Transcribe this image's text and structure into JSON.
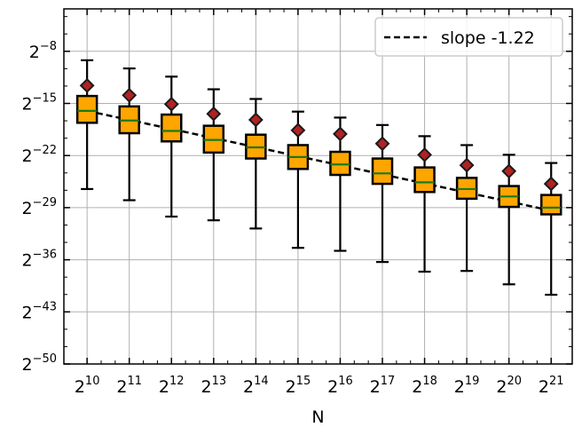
{
  "chart_data": {
    "type": "box",
    "title": "",
    "xlabel": "N",
    "ylabel": "",
    "x_scale": "log2",
    "y_scale": "log2",
    "x": [
      10,
      11,
      12,
      13,
      14,
      15,
      16,
      17,
      18,
      19,
      20,
      21
    ],
    "x_tick_labels": [
      {
        "base": "2",
        "exp": "10"
      },
      {
        "base": "2",
        "exp": "11"
      },
      {
        "base": "2",
        "exp": "12"
      },
      {
        "base": "2",
        "exp": "13"
      },
      {
        "base": "2",
        "exp": "14"
      },
      {
        "base": "2",
        "exp": "15"
      },
      {
        "base": "2",
        "exp": "16"
      },
      {
        "base": "2",
        "exp": "17"
      },
      {
        "base": "2",
        "exp": "18"
      },
      {
        "base": "2",
        "exp": "19"
      },
      {
        "base": "2",
        "exp": "20"
      },
      {
        "base": "2",
        "exp": "21"
      }
    ],
    "y_ticks": [
      -50,
      -43,
      -36,
      -29,
      -22,
      -15,
      -8
    ],
    "y_tick_labels": [
      {
        "base": "2",
        "exp": "−50"
      },
      {
        "base": "2",
        "exp": "−43"
      },
      {
        "base": "2",
        "exp": "−36"
      },
      {
        "base": "2",
        "exp": "−29"
      },
      {
        "base": "2",
        "exp": "−22"
      },
      {
        "base": "2",
        "exp": "−15"
      },
      {
        "base": "2",
        "exp": "−8"
      }
    ],
    "xlim": [
      9.45,
      21.5
    ],
    "ylim": [
      -50,
      -2.3
    ],
    "grid": true,
    "legend": {
      "position": "top-right",
      "entries": [
        {
          "label": "slope -1.22",
          "style": "dashed",
          "color": "#000000"
        }
      ]
    },
    "boxes": [
      {
        "x": 10,
        "whisker_low": -26.5,
        "q1": -17.6,
        "median": -16.0,
        "q3": -14.0,
        "whisker_high": -9.2,
        "max_marker": -12.6
      },
      {
        "x": 11,
        "whisker_low": -28.0,
        "q1": -19.0,
        "median": -17.3,
        "q3": -15.4,
        "whisker_high": -10.3,
        "max_marker": -13.9
      },
      {
        "x": 12,
        "whisker_low": -30.2,
        "q1": -20.1,
        "median": -18.7,
        "q3": -16.5,
        "whisker_high": -11.4,
        "max_marker": -15.1
      },
      {
        "x": 13,
        "whisker_low": -30.7,
        "q1": -21.6,
        "median": -19.9,
        "q3": -18.0,
        "whisker_high": -13.1,
        "max_marker": -16.4
      },
      {
        "x": 14,
        "whisker_low": -31.8,
        "q1": -22.4,
        "median": -20.9,
        "q3": -19.2,
        "whisker_high": -14.4,
        "max_marker": -17.2
      },
      {
        "x": 15,
        "whisker_low": -34.4,
        "q1": -23.8,
        "median": -22.2,
        "q3": -20.6,
        "whisker_high": -16.1,
        "max_marker": -18.6
      },
      {
        "x": 16,
        "whisker_low": -34.8,
        "q1": -24.6,
        "median": -23.2,
        "q3": -21.5,
        "whisker_high": -16.9,
        "max_marker": -19.1
      },
      {
        "x": 17,
        "whisker_low": -36.3,
        "q1": -25.8,
        "median": -24.4,
        "q3": -22.4,
        "whisker_high": -17.9,
        "max_marker": -20.4
      },
      {
        "x": 18,
        "whisker_low": -37.6,
        "q1": -26.9,
        "median": -25.6,
        "q3": -23.6,
        "whisker_high": -19.4,
        "max_marker": -21.9
      },
      {
        "x": 19,
        "whisker_low": -37.5,
        "q1": -27.8,
        "median": -26.5,
        "q3": -25.0,
        "whisker_high": -20.6,
        "max_marker": -23.3
      },
      {
        "x": 20,
        "whisker_low": -39.3,
        "q1": -28.9,
        "median": -27.5,
        "q3": -26.1,
        "whisker_high": -21.9,
        "max_marker": -24.1
      },
      {
        "x": 21,
        "whisker_low": -40.7,
        "q1": -29.9,
        "median": -29.0,
        "q3": -27.3,
        "whisker_high": -23.0,
        "max_marker": -25.8
      }
    ],
    "fit_line": {
      "label": "slope -1.22",
      "slope": -1.22,
      "x": [
        10,
        21
      ],
      "y": [
        -16.0,
        -29.4
      ]
    },
    "colors": {
      "box_fill": "#ffa500",
      "box_edge": "#000000",
      "median": "#1a7a1a",
      "marker_fill": "#b22222",
      "marker_edge": "#1a1a1a",
      "grid": "#b0b0b0",
      "fit_line": "#000000"
    }
  }
}
